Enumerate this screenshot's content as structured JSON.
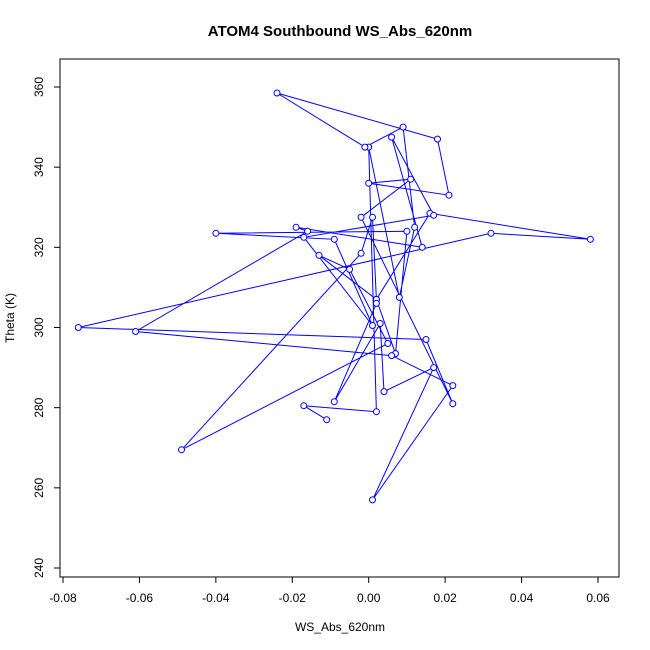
{
  "chart_data": {
    "type": "scatter",
    "mode": "lines+markers",
    "title": "ATOM4 Southbound WS_Abs_620nm",
    "xlabel": "WS_Abs_620nm",
    "ylabel": "Theta (K)",
    "xlim": [
      -0.08,
      0.06
    ],
    "ylim": [
      240,
      360
    ],
    "xticks": [
      -0.08,
      -0.06,
      -0.04,
      -0.02,
      0.0,
      0.02,
      0.04,
      0.06
    ],
    "xtick_labels": [
      "-0.08",
      "-0.06",
      "-0.04",
      "-0.02",
      "0.00",
      "0.02",
      "0.04",
      "0.06"
    ],
    "yticks": [
      240,
      260,
      280,
      300,
      320,
      340,
      360
    ],
    "ytick_labels": [
      "240",
      "260",
      "280",
      "300",
      "320",
      "340",
      "360"
    ],
    "grid": false,
    "color": "#0000ff",
    "x": [
      -0.011,
      -0.017,
      0.002,
      0.0,
      0.008,
      0.012,
      0.009,
      -0.001,
      -0.024,
      0.018,
      0.021,
      0.0,
      0.011,
      -0.002,
      0.022,
      0.015,
      -0.076,
      0.032,
      0.058,
      0.016,
      0.002,
      -0.013,
      -0.005,
      0.005,
      -0.049,
      -0.002,
      0.001,
      0.002,
      0.007,
      0.01,
      -0.04,
      -0.009,
      0.001,
      -0.017,
      0.017,
      0.006,
      0.014,
      -0.019,
      -0.016,
      -0.061,
      0.006,
      0.022,
      0.001,
      0.017,
      0.004,
      0.003,
      -0.009,
      0.002
    ],
    "y": [
      277,
      280.5,
      279,
      345,
      307.5,
      325,
      350,
      345,
      358.5,
      347,
      333,
      336,
      337,
      327.5,
      281,
      297,
      300,
      323.5,
      322,
      328.5,
      307,
      318,
      314.5,
      296,
      269.5,
      318.5,
      327.5,
      307,
      293.5,
      324,
      323.5,
      322,
      300.5,
      322.5,
      328,
      347.5,
      320,
      325,
      324,
      299,
      293,
      285.5,
      257,
      290,
      284,
      301,
      281.5,
      306
    ]
  }
}
